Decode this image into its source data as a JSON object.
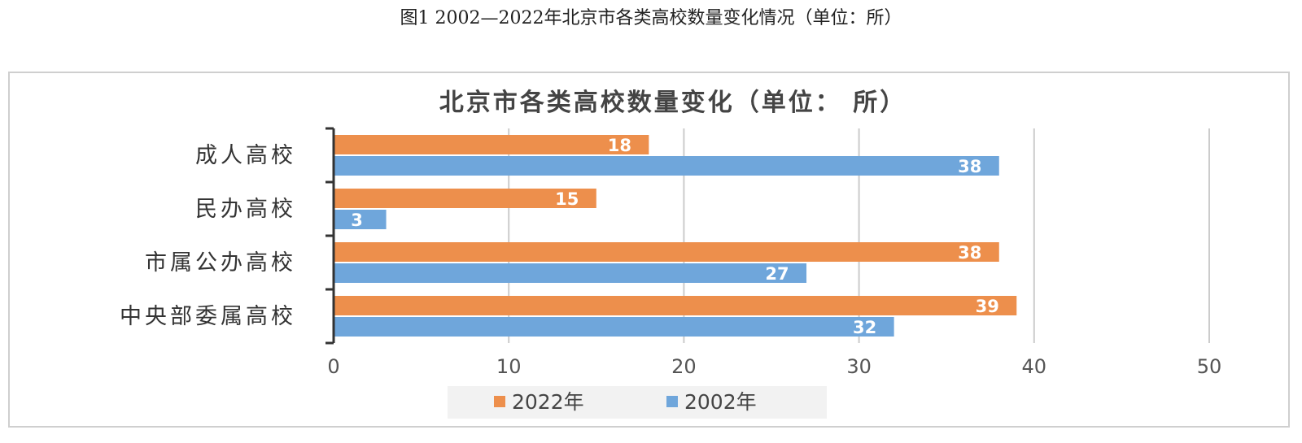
{
  "caption": "图1 2002—2022年北京市各类高校数量变化情况（单位：所）",
  "chart_data": {
    "type": "bar",
    "orientation": "horizontal",
    "title": "北京市各类高校数量变化（单位： 所）",
    "categories": [
      "成人高校",
      "民办高校",
      "市属公办高校",
      "中央部委属高校"
    ],
    "series": [
      {
        "name": "2022年",
        "color": "#ED8F4C",
        "values": [
          18,
          15,
          38,
          39
        ]
      },
      {
        "name": "2002年",
        "color": "#6FA6DB",
        "values": [
          38,
          3,
          27,
          32
        ]
      }
    ],
    "xlim": [
      0,
      50
    ],
    "xticks": [
      "0",
      "10",
      "20",
      "30",
      "40",
      "50"
    ],
    "grid": true,
    "legend": "bottom"
  }
}
